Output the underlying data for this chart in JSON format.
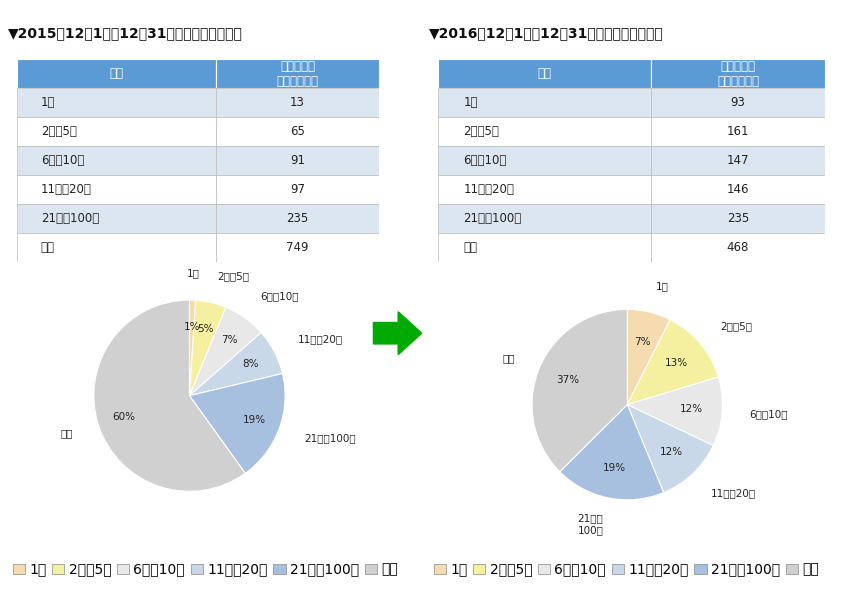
{
  "title_left": "▼2015年12月1日～12月31日のランキング状況",
  "title_right": "▼2016年12月1日～12月31日のランキング状況",
  "col_header_1": "順位",
  "col_header_2": "ランクイン\nキーワード数",
  "row_labels": [
    "1位",
    "2位－5位",
    "6位－10位",
    "11位－20位",
    "21位－100位",
    "圏外"
  ],
  "values_2015": [
    13,
    65,
    91,
    97,
    235,
    749
  ],
  "values_2016": [
    93,
    161,
    147,
    146,
    235,
    468
  ],
  "pie_labels": [
    "1位",
    "2位－5位",
    "6位－10位",
    "11位－20位",
    "21位－100位",
    "圏外"
  ],
  "pie_label_2line": [
    "1位",
    "2位－5位",
    "6位－10位",
    "11位－20位",
    "21位－\n100位",
    "圏外"
  ],
  "pie_colors": [
    "#f5dcb0",
    "#f5f0a0",
    "#e8e8e8",
    "#c8d8e8",
    "#a8c0e0",
    "#d0d0d0"
  ],
  "header_bg": "#5b9bd5",
  "header_text": "#ffffff",
  "row_bg_even": "#dce6f1",
  "row_bg_odd": "#ffffff",
  "arrow_color": "#00aa00",
  "bg_color": "#ffffff"
}
